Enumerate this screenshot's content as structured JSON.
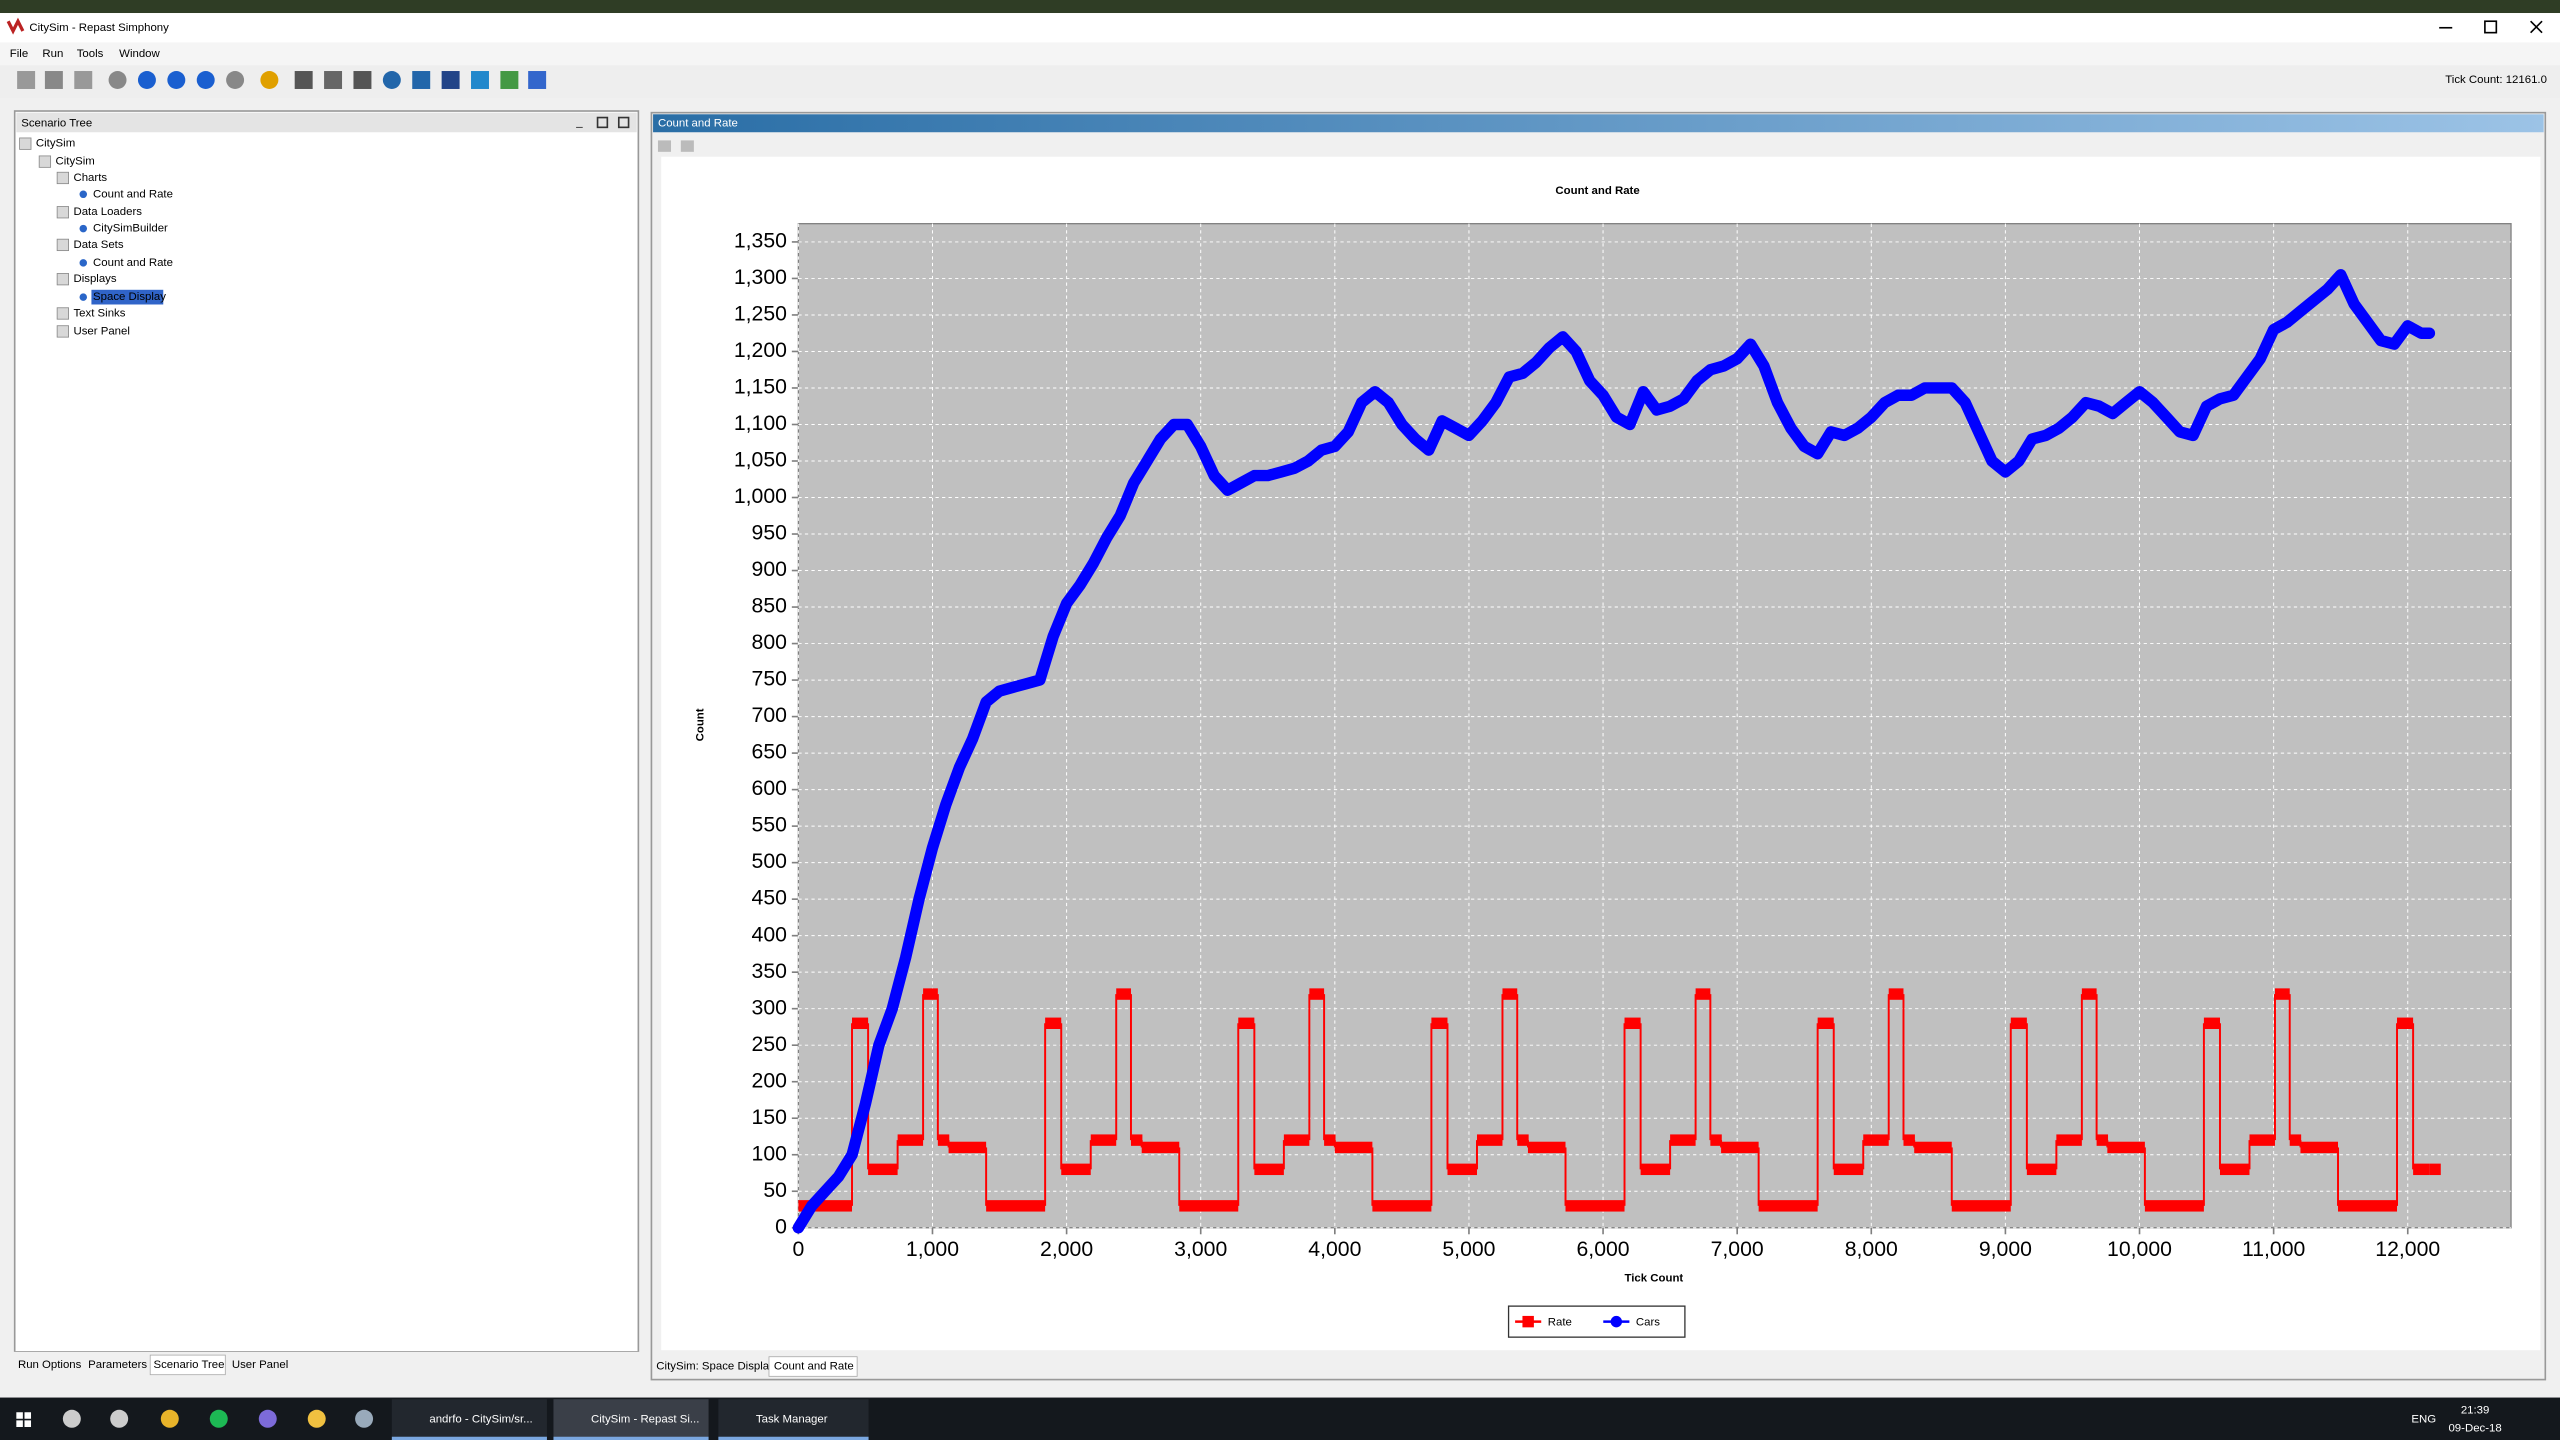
{
  "window": {
    "title": "CitySim - Repast Simphony",
    "menu": [
      "File",
      "Run",
      "Tools",
      "Window"
    ],
    "tick_count": "Tick Count: 12161.0"
  },
  "scenario_panel": {
    "title": "Scenario Tree",
    "tree": [
      "CitySim",
      "CitySim",
      "Charts",
      "Count and Rate",
      "Data Loaders",
      "CitySimBuilder",
      "Data Sets",
      "Count and Rate",
      "Displays",
      "Space Display",
      "Text Sinks",
      "User Panel"
    ],
    "tabs": [
      "Run Options",
      "Parameters",
      "Scenario Tree",
      "User Panel"
    ]
  },
  "chart_panel": {
    "title": "Count and Rate",
    "tabs": [
      "CitySim: Space Display",
      "Count and Rate"
    ]
  },
  "taskbar": {
    "items": [
      "andrfo - CitySim/sr...",
      "CitySim - Repast Si...",
      "Task Manager"
    ],
    "language": "ENG",
    "time": "21:39",
    "date": "09-Dec-18"
  },
  "chart_data": {
    "type": "line",
    "title": "Count and Rate",
    "x_label": "Tick Count",
    "y_label": "Count",
    "xlim": [
      0,
      12770
    ],
    "ylim": [
      0,
      1375
    ],
    "grid": true,
    "legend": "bottom",
    "xticks": [
      0,
      {
        "value": 1000,
        "label": "1,000"
      },
      {
        "value": 2000,
        "label": "2,000"
      },
      {
        "value": 3000,
        "label": "3,000"
      },
      {
        "value": 4000,
        "label": "4,000"
      },
      {
        "value": 5000,
        "label": "5,000"
      },
      {
        "value": 6000,
        "label": "6,000"
      },
      {
        "value": 7000,
        "label": "7,000"
      },
      {
        "value": 8000,
        "label": "8,000"
      },
      {
        "value": 9000,
        "label": "9,000"
      },
      {
        "value": 10000,
        "label": "10,000"
      },
      {
        "value": 11000,
        "label": "11,000"
      },
      {
        "value": 12000,
        "label": "12,000"
      }
    ],
    "yticks": [
      0,
      50,
      100,
      150,
      200,
      250,
      300,
      350,
      400,
      450,
      500,
      550,
      600,
      650,
      700,
      750,
      800,
      850,
      900,
      950,
      {
        "value": 1000,
        "label": "1,000"
      },
      {
        "value": 1050,
        "label": "1,050"
      },
      {
        "value": 1100,
        "label": "1,100"
      },
      {
        "value": 1150,
        "label": "1,150"
      },
      {
        "value": 1200,
        "label": "1,200"
      },
      {
        "value": 1250,
        "label": "1,250"
      },
      {
        "value": 1300,
        "label": "1,300"
      },
      {
        "value": 1350,
        "label": "1,350"
      }
    ],
    "series": [
      {
        "name": "Rate",
        "color": "#ff0000",
        "marker": "square",
        "step": true,
        "x": [
          0,
          400,
          520,
          740,
          930,
          1040,
          1120,
          1400,
          1840,
          1960,
          2180,
          2370,
          2480,
          2560,
          2840,
          3280,
          3400,
          3620,
          3810,
          3920,
          4000,
          4280,
          4720,
          4840,
          5060,
          5250,
          5360,
          5440,
          5720,
          6160,
          6280,
          6500,
          6690,
          6800,
          6880,
          7160,
          7600,
          7720,
          7940,
          8130,
          8240,
          8320,
          8600,
          9040,
          9160,
          9380,
          9570,
          9680,
          9760,
          10040,
          10480,
          10600,
          10820,
          11010,
          11120,
          11200,
          11480,
          11920,
          12040,
          12161
        ],
        "values": [
          30,
          280,
          80,
          120,
          320,
          120,
          110,
          30,
          280,
          80,
          120,
          320,
          120,
          110,
          30,
          280,
          80,
          120,
          320,
          120,
          110,
          30,
          280,
          80,
          120,
          320,
          120,
          110,
          30,
          280,
          80,
          120,
          320,
          120,
          110,
          30,
          280,
          80,
          120,
          320,
          120,
          110,
          30,
          280,
          80,
          120,
          320,
          120,
          110,
          30,
          280,
          80,
          120,
          320,
          120,
          110,
          30,
          280,
          80,
          80
        ]
      },
      {
        "name": "Cars",
        "color": "#0000ff",
        "marker": "circle",
        "x": [
          0,
          100,
          200,
          300,
          400,
          500,
          600,
          700,
          800,
          900,
          1000,
          1100,
          1200,
          1300,
          1400,
          1500,
          1600,
          1700,
          1800,
          1900,
          2000,
          2100,
          2200,
          2300,
          2400,
          2500,
          2600,
          2700,
          2800,
          2900,
          3000,
          3100,
          3200,
          3300,
          3400,
          3500,
          3600,
          3700,
          3800,
          3900,
          4000,
          4100,
          4200,
          4300,
          4400,
          4500,
          4600,
          4700,
          4800,
          4900,
          5000,
          5100,
          5200,
          5300,
          5400,
          5500,
          5600,
          5700,
          5800,
          5900,
          6000,
          6100,
          6200,
          6300,
          6400,
          6500,
          6600,
          6700,
          6800,
          6900,
          7000,
          7100,
          7200,
          7300,
          7400,
          7500,
          7600,
          7700,
          7800,
          7900,
          8000,
          8100,
          8200,
          8300,
          8400,
          8500,
          8600,
          8700,
          8800,
          8900,
          9000,
          9100,
          9200,
          9300,
          9400,
          9500,
          9600,
          9700,
          9800,
          9900,
          10000,
          10100,
          10200,
          10300,
          10400,
          10500,
          10600,
          10700,
          10800,
          10900,
          11000,
          11100,
          11200,
          11300,
          11400,
          11500,
          11600,
          11700,
          11800,
          11900,
          12000,
          12100,
          12161
        ],
        "values": [
          0,
          30,
          50,
          70,
          100,
          170,
          250,
          300,
          370,
          450,
          520,
          580,
          630,
          670,
          720,
          735,
          740,
          745,
          750,
          810,
          855,
          880,
          910,
          945,
          975,
          1020,
          1050,
          1080,
          1100,
          1100,
          1070,
          1030,
          1010,
          1020,
          1030,
          1030,
          1035,
          1040,
          1050,
          1065,
          1070,
          1090,
          1130,
          1145,
          1130,
          1100,
          1080,
          1065,
          1105,
          1095,
          1085,
          1105,
          1130,
          1165,
          1170,
          1185,
          1205,
          1220,
          1200,
          1160,
          1140,
          1110,
          1100,
          1145,
          1120,
          1125,
          1135,
          1160,
          1175,
          1180,
          1190,
          1210,
          1180,
          1130,
          1095,
          1070,
          1060,
          1090,
          1085,
          1095,
          1110,
          1130,
          1140,
          1140,
          1150,
          1150,
          1150,
          1130,
          1090,
          1050,
          1035,
          1050,
          1080,
          1085,
          1095,
          1110,
          1130,
          1125,
          1115,
          1130,
          1145,
          1130,
          1110,
          1090,
          1085,
          1125,
          1135,
          1140,
          1165,
          1190,
          1230,
          1240,
          1255,
          1270,
          1285,
          1305,
          1265,
          1240,
          1215,
          1210,
          1235,
          1225,
          1225
        ]
      }
    ]
  }
}
